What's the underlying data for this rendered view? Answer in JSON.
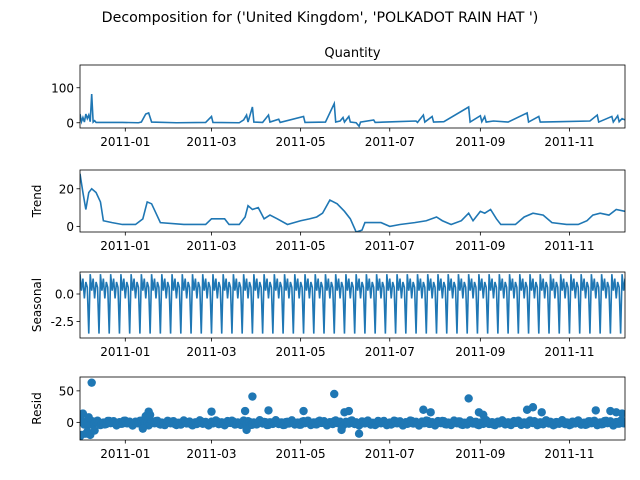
{
  "figure": {
    "suptitle": "Decomposition for ('United Kingdom', 'POLKADOT RAIN HAT ')"
  },
  "colors": {
    "series": "#1f77b4",
    "axis": "#000000",
    "zero_line": "#000000"
  },
  "chart_data": [
    {
      "type": "line",
      "title": "Quantity",
      "ylabel": "",
      "ylim": [
        -15,
        165
      ],
      "yticks": [
        0,
        100
      ],
      "xlabel": "",
      "xlim": [
        "2010-12-01",
        "2011-12-09"
      ],
      "xticks": [
        "2011-01",
        "2011-03",
        "2011-05",
        "2011-07",
        "2011-09",
        "2011-11"
      ],
      "points": [
        [
          "2010-12-01",
          25
        ],
        [
          "2010-12-02",
          3
        ],
        [
          "2010-12-03",
          15
        ],
        [
          "2010-12-04",
          2
        ],
        [
          "2010-12-05",
          25
        ],
        [
          "2010-12-06",
          12
        ],
        [
          "2010-12-07",
          22
        ],
        [
          "2010-12-08",
          3
        ],
        [
          "2010-12-09",
          82
        ],
        [
          "2010-12-10",
          2
        ],
        [
          "2010-12-11",
          6
        ],
        [
          "2010-12-12",
          1
        ],
        [
          "2010-12-20",
          1
        ],
        [
          "2010-12-30",
          1
        ],
        [
          "2011-01-10",
          0
        ],
        [
          "2011-01-12",
          2
        ],
        [
          "2011-01-15",
          25
        ],
        [
          "2011-01-17",
          28
        ],
        [
          "2011-01-19",
          2
        ],
        [
          "2011-02-05",
          0
        ],
        [
          "2011-02-25",
          1
        ],
        [
          "2011-03-01",
          18
        ],
        [
          "2011-03-02",
          1
        ],
        [
          "2011-03-20",
          0
        ],
        [
          "2011-03-23",
          8
        ],
        [
          "2011-03-25",
          22
        ],
        [
          "2011-03-26",
          2
        ],
        [
          "2011-03-29",
          45
        ],
        [
          "2011-03-30",
          2
        ],
        [
          "2011-04-05",
          1
        ],
        [
          "2011-04-09",
          22
        ],
        [
          "2011-04-10",
          2
        ],
        [
          "2011-04-16",
          10
        ],
        [
          "2011-04-17",
          1
        ],
        [
          "2011-05-03",
          18
        ],
        [
          "2011-05-04",
          1
        ],
        [
          "2011-05-18",
          2
        ],
        [
          "2011-05-24",
          55
        ],
        [
          "2011-05-25",
          2
        ],
        [
          "2011-05-28",
          5
        ],
        [
          "2011-05-30",
          15
        ],
        [
          "2011-05-31",
          2
        ],
        [
          "2011-06-03",
          18
        ],
        [
          "2011-06-04",
          2
        ],
        [
          "2011-06-08",
          0
        ],
        [
          "2011-06-10",
          -10
        ],
        [
          "2011-06-11",
          2
        ],
        [
          "2011-06-20",
          8
        ],
        [
          "2011-06-21",
          1
        ],
        [
          "2011-07-05",
          3
        ],
        [
          "2011-07-19",
          5
        ],
        [
          "2011-07-20",
          1
        ],
        [
          "2011-07-24",
          22
        ],
        [
          "2011-07-25",
          2
        ],
        [
          "2011-07-30",
          18
        ],
        [
          "2011-07-31",
          2
        ],
        [
          "2011-08-07",
          3
        ],
        [
          "2011-08-24",
          45
        ],
        [
          "2011-08-25",
          2
        ],
        [
          "2011-09-01",
          20
        ],
        [
          "2011-09-02",
          3
        ],
        [
          "2011-09-04",
          18
        ],
        [
          "2011-09-05",
          2
        ],
        [
          "2011-09-10",
          5
        ],
        [
          "2011-09-20",
          2
        ],
        [
          "2011-10-03",
          28
        ],
        [
          "2011-10-04",
          2
        ],
        [
          "2011-10-11",
          18
        ],
        [
          "2011-10-12",
          2
        ],
        [
          "2011-10-25",
          3
        ],
        [
          "2011-11-15",
          5
        ],
        [
          "2011-11-20",
          22
        ],
        [
          "2011-11-21",
          2
        ],
        [
          "2011-11-30",
          18
        ],
        [
          "2011-12-01",
          2
        ],
        [
          "2011-12-04",
          20
        ],
        [
          "2011-12-05",
          3
        ],
        [
          "2011-12-07",
          12
        ],
        [
          "2011-12-09",
          8
        ]
      ]
    },
    {
      "type": "line",
      "title": "",
      "ylabel": "Trend",
      "ylim": [
        -3,
        30
      ],
      "yticks": [
        0,
        20
      ],
      "xlabel": "",
      "xlim": [
        "2010-12-01",
        "2011-12-09"
      ],
      "xticks": [
        "2011-01",
        "2011-03",
        "2011-05",
        "2011-07",
        "2011-09",
        "2011-11"
      ],
      "points": [
        [
          "2010-12-01",
          28
        ],
        [
          "2010-12-03",
          18
        ],
        [
          "2010-12-05",
          9
        ],
        [
          "2010-12-07",
          18
        ],
        [
          "2010-12-09",
          20
        ],
        [
          "2010-12-12",
          18
        ],
        [
          "2010-12-15",
          13
        ],
        [
          "2010-12-17",
          3
        ],
        [
          "2010-12-23",
          2
        ],
        [
          "2010-12-30",
          1
        ],
        [
          "2011-01-08",
          1
        ],
        [
          "2011-01-13",
          4
        ],
        [
          "2011-01-16",
          13
        ],
        [
          "2011-01-19",
          12
        ],
        [
          "2011-01-22",
          7
        ],
        [
          "2011-01-25",
          2
        ],
        [
          "2011-02-10",
          1
        ],
        [
          "2011-02-25",
          1
        ],
        [
          "2011-03-01",
          4
        ],
        [
          "2011-03-10",
          4
        ],
        [
          "2011-03-13",
          1
        ],
        [
          "2011-03-20",
          1
        ],
        [
          "2011-03-24",
          5
        ],
        [
          "2011-03-26",
          11
        ],
        [
          "2011-03-29",
          9
        ],
        [
          "2011-04-02",
          10
        ],
        [
          "2011-04-06",
          4
        ],
        [
          "2011-04-10",
          6
        ],
        [
          "2011-04-15",
          4
        ],
        [
          "2011-04-22",
          1
        ],
        [
          "2011-05-01",
          3
        ],
        [
          "2011-05-07",
          4
        ],
        [
          "2011-05-12",
          5
        ],
        [
          "2011-05-16",
          7
        ],
        [
          "2011-05-21",
          14
        ],
        [
          "2011-05-26",
          12
        ],
        [
          "2011-05-31",
          8
        ],
        [
          "2011-06-04",
          4
        ],
        [
          "2011-06-08",
          -3
        ],
        [
          "2011-06-12",
          -2
        ],
        [
          "2011-06-14",
          2
        ],
        [
          "2011-06-25",
          2
        ],
        [
          "2011-07-01",
          0
        ],
        [
          "2011-07-08",
          1
        ],
        [
          "2011-07-18",
          2
        ],
        [
          "2011-07-26",
          3
        ],
        [
          "2011-08-02",
          5
        ],
        [
          "2011-08-06",
          3
        ],
        [
          "2011-08-12",
          1
        ],
        [
          "2011-08-19",
          3
        ],
        [
          "2011-08-24",
          7
        ],
        [
          "2011-08-27",
          3
        ],
        [
          "2011-09-01",
          8
        ],
        [
          "2011-09-04",
          7
        ],
        [
          "2011-09-08",
          9
        ],
        [
          "2011-09-12",
          4
        ],
        [
          "2011-09-15",
          1
        ],
        [
          "2011-09-25",
          1
        ],
        [
          "2011-10-01",
          5
        ],
        [
          "2011-10-07",
          7
        ],
        [
          "2011-10-14",
          6
        ],
        [
          "2011-10-20",
          2
        ],
        [
          "2011-10-30",
          1
        ],
        [
          "2011-11-07",
          1
        ],
        [
          "2011-11-13",
          3
        ],
        [
          "2011-11-17",
          6
        ],
        [
          "2011-11-22",
          7
        ],
        [
          "2011-11-28",
          6
        ],
        [
          "2011-12-03",
          9
        ],
        [
          "2011-12-09",
          8
        ]
      ]
    },
    {
      "type": "line",
      "title": "",
      "ylabel": "Seasonal",
      "ylim": [
        -4,
        2
      ],
      "yticks": [
        0.0,
        -2.5
      ],
      "xlabel": "",
      "xlim": [
        "2010-12-01",
        "2011-12-09"
      ],
      "xticks": [
        "2011-01",
        "2011-03",
        "2011-05",
        "2011-07",
        "2011-09",
        "2011-11"
      ],
      "period_pattern": [
        1.8,
        0.3,
        1.4,
        -0.4,
        1.1,
        0.6,
        -3.6
      ]
    },
    {
      "type": "scatter",
      "title": "",
      "ylabel": "Resid",
      "ylim": [
        -28,
        72
      ],
      "yticks": [
        0,
        50
      ],
      "xlabel": "",
      "xlim": [
        "2010-12-01",
        "2011-12-09"
      ],
      "xticks": [
        "2011-01",
        "2011-03",
        "2011-05",
        "2011-07",
        "2011-09",
        "2011-11"
      ],
      "outliers": [
        [
          "2010-12-01",
          -22
        ],
        [
          "2010-12-02",
          -20
        ],
        [
          "2010-12-03",
          14
        ],
        [
          "2010-12-05",
          -18
        ],
        [
          "2010-12-06",
          -15
        ],
        [
          "2010-12-07",
          8
        ],
        [
          "2010-12-08",
          -20
        ],
        [
          "2010-12-09",
          63
        ],
        [
          "2010-12-11",
          -13
        ],
        [
          "2011-01-13",
          -10
        ],
        [
          "2011-01-15",
          10
        ],
        [
          "2011-01-17",
          17
        ],
        [
          "2011-01-18",
          12
        ],
        [
          "2011-03-01",
          17
        ],
        [
          "2011-03-24",
          18
        ],
        [
          "2011-03-25",
          -12
        ],
        [
          "2011-03-29",
          41
        ],
        [
          "2011-04-09",
          19
        ],
        [
          "2011-05-03",
          18
        ],
        [
          "2011-05-24",
          45
        ],
        [
          "2011-05-29",
          -12
        ],
        [
          "2011-05-31",
          16
        ],
        [
          "2011-06-03",
          18
        ],
        [
          "2011-06-10",
          -18
        ],
        [
          "2011-07-24",
          20
        ],
        [
          "2011-07-29",
          16
        ],
        [
          "2011-08-24",
          38
        ],
        [
          "2011-08-31",
          16
        ],
        [
          "2011-09-03",
          12
        ],
        [
          "2011-10-03",
          20
        ],
        [
          "2011-10-07",
          24
        ],
        [
          "2011-10-13",
          16
        ],
        [
          "2011-11-19",
          19
        ],
        [
          "2011-11-29",
          18
        ],
        [
          "2011-12-03",
          16
        ],
        [
          "2011-12-07",
          14
        ]
      ]
    }
  ]
}
